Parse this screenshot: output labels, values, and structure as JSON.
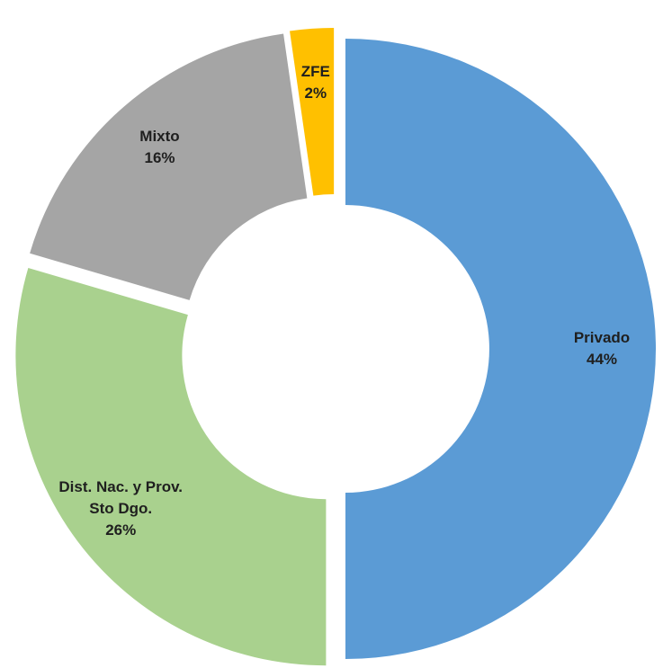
{
  "chart_data": {
    "type": "donut",
    "categories": [
      "Privado",
      "Dist. Nac. y Prov. Sto Dgo.",
      "Mixto",
      "ZFE"
    ],
    "values": [
      44,
      26,
      16,
      2
    ],
    "value_labels": [
      "44%",
      "26%",
      "16%",
      "2%"
    ],
    "colors": [
      "#5b9bd5",
      "#a9d18e",
      "#a5a5a5",
      "#ffc000"
    ]
  }
}
